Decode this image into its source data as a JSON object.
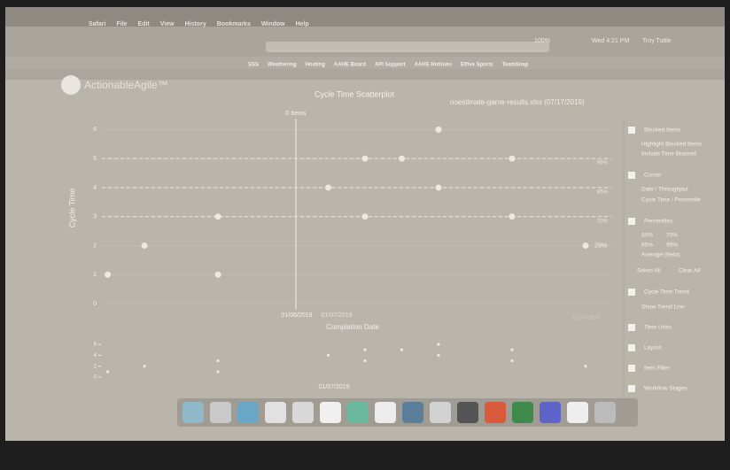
{
  "menu_bar": {
    "items": [
      "Safari",
      "File",
      "Edit",
      "View",
      "History",
      "Bookmarks",
      "Window",
      "Help"
    ],
    "status": [
      "100%",
      "Wed 4:21 PM",
      "Troy Tuttle"
    ]
  },
  "bookmarks": [
    "SSS",
    "Weathering",
    "Hosting",
    "AAHE Board",
    "API Support",
    "AAHE Hotlines",
    "Elfive Sports",
    "TeamSnap"
  ],
  "app": {
    "brand": "ActionableAgile™",
    "file": "noestimate-game-results.xlsx (07/17/2019)"
  },
  "sidebar": [
    "Blocked Items",
    "Highlight Blocked Items",
    "Include Time Blocked",
    "Cursor",
    "Date / Throughput",
    "Cycle Time / Percentile",
    "Percentiles",
    "50%",
    "70%",
    "85%",
    "95%",
    "Average (Beta)",
    "Select All",
    "Clear All",
    "Cycle Time Trend",
    "Show Trend Line",
    "Time Units",
    "Layout",
    "Item Filter",
    "Workflow Stages"
  ],
  "chart_data": {
    "type": "scatter",
    "title": "Cycle Time Scatterplot",
    "annotation": "0 Items",
    "x_label": "Completion Date",
    "y_label": "Cycle Time",
    "x": [
      1,
      2,
      4,
      4,
      7,
      8,
      8,
      9,
      10,
      10,
      12,
      12,
      14
    ],
    "values": [
      1,
      2,
      3,
      1,
      4,
      5,
      3,
      5,
      6,
      4,
      5,
      3,
      2
    ],
    "color": "#ebe9e2",
    "xlim": [
      0.6,
      14.7
    ],
    "ylim": [
      0,
      6.5
    ],
    "yticks": [
      0,
      1,
      2,
      3,
      4,
      5,
      6
    ],
    "percentiles": [
      {
        "label": "95%",
        "value": 5
      },
      {
        "label": "85%",
        "value": 4
      },
      {
        "label": "70%",
        "value": 3
      }
    ],
    "cursor_labels": [
      "01/06/2019",
      "01/07/2019"
    ],
    "end_label": "01/14/2019",
    "point_label": "29%",
    "overview": {
      "ylim": [
        0,
        6.5
      ],
      "yticks": [
        0,
        2,
        4,
        6
      ],
      "label": "01/07/2019"
    }
  }
}
